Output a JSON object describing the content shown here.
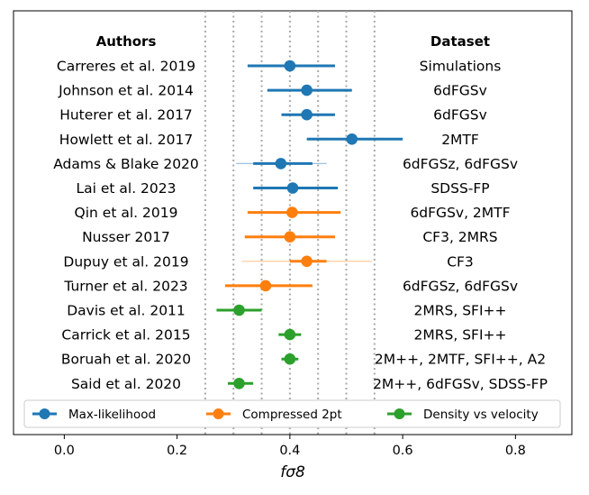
{
  "chart_data": {
    "type": "scatter",
    "title": "",
    "xlabel": "fσ8",
    "ylabel": "",
    "xlim": [
      -0.09,
      0.9
    ],
    "xticks": [
      0.0,
      0.2,
      0.4,
      0.6,
      0.8
    ],
    "xtick_labels": [
      "0.0",
      "0.2",
      "0.4",
      "0.6",
      "0.8"
    ],
    "reference_lines": [
      0.25,
      0.3,
      0.35,
      0.4,
      0.45,
      0.5,
      0.55
    ],
    "grid": false,
    "legend_position": "bottom",
    "headers": {
      "authors": "Authors",
      "dataset": "Dataset"
    },
    "series": [
      {
        "name": "Max-likelihood",
        "color": "#1f77b4"
      },
      {
        "name": "Compressed 2pt",
        "color": "#ff7f0e"
      },
      {
        "name": "Density vs velocity",
        "color": "#2ca02c"
      }
    ],
    "rows": [
      {
        "author": "Carreres et al. 2019",
        "dataset": "Simulations",
        "series": 0,
        "value": 0.4,
        "lower": 0.325,
        "upper": 0.48
      },
      {
        "author": "Johnson et al. 2014",
        "dataset": "6dFGSv",
        "series": 0,
        "value": 0.43,
        "lower": 0.36,
        "upper": 0.51
      },
      {
        "author": "Huterer et al. 2017",
        "dataset": "6dFGSv",
        "series": 0,
        "value": 0.43,
        "lower": 0.385,
        "upper": 0.48
      },
      {
        "author": "Howlett et al. 2017",
        "dataset": "2MTF",
        "series": 0,
        "value": 0.51,
        "lower": 0.43,
        "upper": 0.6
      },
      {
        "author": "Adams & Blake 2020",
        "dataset": "6dFGSz, 6dFGSv",
        "series": 0,
        "value": 0.384,
        "lower": 0.335,
        "upper": 0.44,
        "outer_lower": 0.305,
        "outer_upper": 0.465
      },
      {
        "author": "Lai et al. 2023",
        "dataset": "SDSS-FP",
        "series": 0,
        "value": 0.405,
        "lower": 0.335,
        "upper": 0.485
      },
      {
        "author": "Qin et al. 2019",
        "dataset": "6dFGSv, 2MTF",
        "series": 1,
        "value": 0.404,
        "lower": 0.325,
        "upper": 0.49
      },
      {
        "author": "Nusser 2017",
        "dataset": "CF3, 2MRS",
        "series": 1,
        "value": 0.4,
        "lower": 0.32,
        "upper": 0.48
      },
      {
        "author": "Dupuy et al. 2019",
        "dataset": "CF3",
        "series": 1,
        "value": 0.43,
        "lower": 0.4,
        "upper": 0.465,
        "outer_lower": 0.315,
        "outer_upper": 0.545
      },
      {
        "author": "Turner et al. 2023",
        "dataset": "6dFGSz, 6dFGSv",
        "series": 1,
        "value": 0.357,
        "lower": 0.285,
        "upper": 0.44
      },
      {
        "author": "Davis et al. 2011",
        "dataset": "2MRS, SFI++",
        "series": 2,
        "value": 0.31,
        "lower": 0.27,
        "upper": 0.35
      },
      {
        "author": "Carrick et al. 2015",
        "dataset": "2MRS, SFI++",
        "series": 2,
        "value": 0.4,
        "lower": 0.38,
        "upper": 0.42
      },
      {
        "author": "Boruah et al. 2020",
        "dataset": "2M++, 2MTF, SFI++, A2",
        "series": 2,
        "value": 0.4,
        "lower": 0.385,
        "upper": 0.415
      },
      {
        "author": "Said et al. 2020",
        "dataset": "2M++, 6dFGSv, SDSS-FP",
        "series": 2,
        "value": 0.31,
        "lower": 0.29,
        "upper": 0.335
      }
    ]
  }
}
